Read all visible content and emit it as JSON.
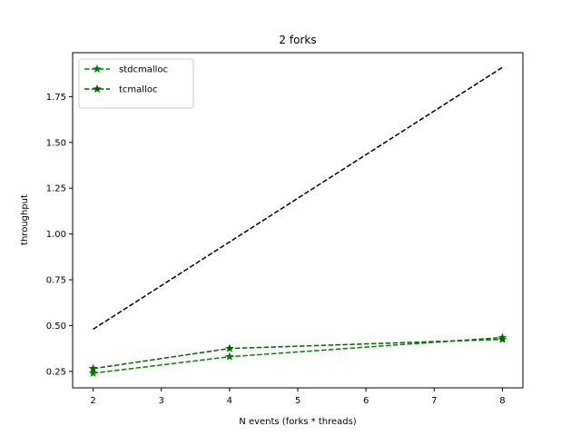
{
  "chart_data": {
    "type": "line",
    "title": "2 forks",
    "xlabel": "N events (forks * threads)",
    "ylabel": "throughput",
    "xlim": [
      1.7,
      8.3
    ],
    "ylim": [
      0.16,
      1.99
    ],
    "xticks": [
      2,
      3,
      4,
      5,
      6,
      7,
      8
    ],
    "xtick_labels": [
      "2",
      "3",
      "4",
      "5",
      "6",
      "7",
      "8"
    ],
    "yticks": [
      0.25,
      0.5,
      0.75,
      1.0,
      1.25,
      1.5,
      1.75
    ],
    "ytick_labels": [
      "0.25",
      "0.50",
      "0.75",
      "1.00",
      "1.25",
      "1.50",
      "1.75"
    ],
    "grid": false,
    "legend_position": "top-left",
    "series": [
      {
        "name": "stdcmalloc",
        "x": [
          2,
          4,
          8
        ],
        "y": [
          0.24,
          0.33,
          0.435
        ],
        "color": "#008000",
        "linestyle": "dashed",
        "marker": "star",
        "legend": true
      },
      {
        "name": "tcmalloc",
        "x": [
          2,
          4,
          8
        ],
        "y": [
          0.265,
          0.375,
          0.425
        ],
        "color": "#006400",
        "linestyle": "dashed",
        "marker": "star",
        "legend": true
      },
      {
        "x": [
          2,
          8
        ],
        "y": [
          0.48,
          1.91
        ],
        "color": "#000000",
        "linestyle": "dashed",
        "marker": "none",
        "legend": false
      }
    ]
  }
}
